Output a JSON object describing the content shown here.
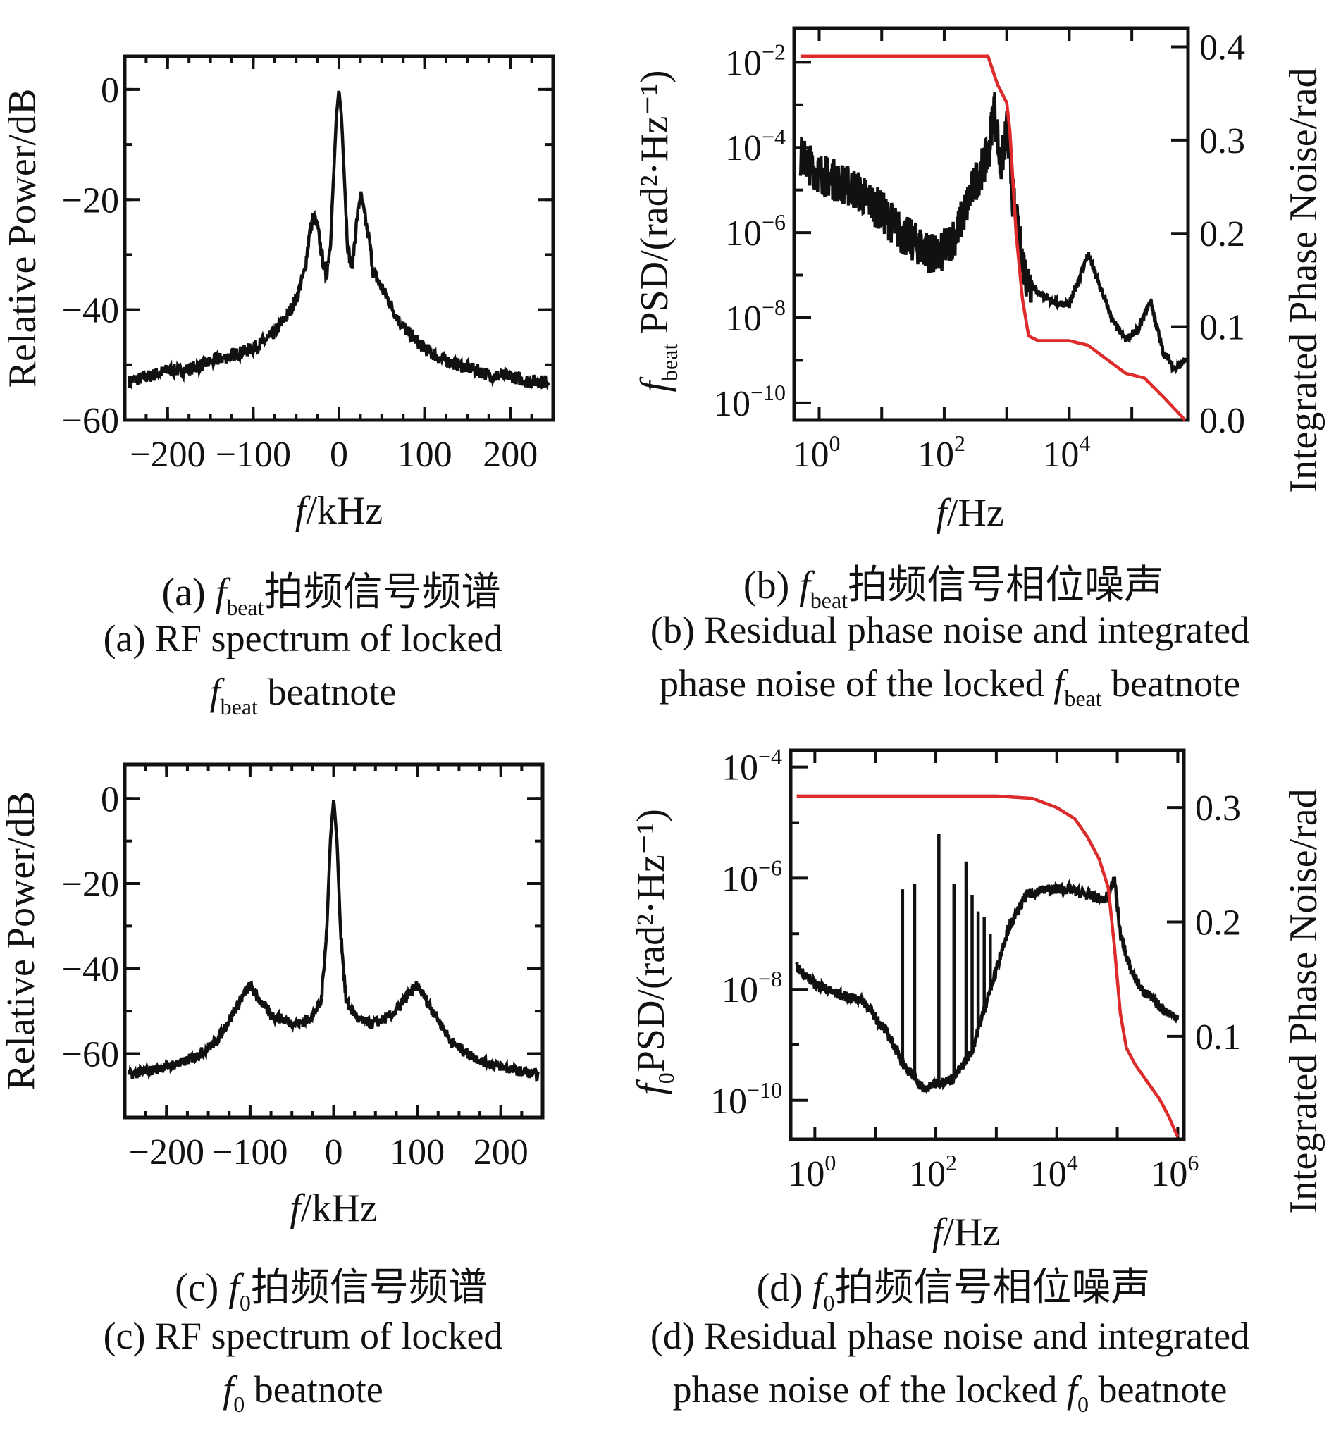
{
  "chart_data": [
    {
      "id": "a",
      "type": "line",
      "ylabel": "Relative Power/dB",
      "xlabel_italic": "f",
      "xlabel_rest": "/kHz",
      "xlim": [
        -250,
        250
      ],
      "ylim": [
        -60,
        6
      ],
      "xticks": [
        -200,
        -100,
        0,
        100,
        200
      ],
      "yticks": [
        0,
        -20,
        -40,
        -60
      ],
      "xtick_labels": [
        "−200",
        "−100",
        "0",
        "100",
        "200"
      ],
      "ytick_labels": [
        "0",
        "−20",
        "−40",
        "−60"
      ],
      "series": [
        {
          "color": "#111111",
          "x": [
            -245,
            -220,
            -200,
            -180,
            -160,
            -140,
            -120,
            -100,
            -80,
            -70,
            -60,
            -50,
            -40,
            -35,
            -30,
            -25,
            -20,
            -15,
            -10,
            -6,
            -3,
            0,
            3,
            6,
            10,
            15,
            20,
            25,
            30,
            35,
            40,
            50,
            60,
            70,
            80,
            100,
            120,
            140,
            160,
            180,
            200,
            220,
            245
          ],
          "y": [
            -53,
            -52,
            -51,
            -51,
            -50,
            -49,
            -48,
            -47,
            -45,
            -43,
            -41,
            -38,
            -33,
            -27,
            -23,
            -25,
            -30,
            -34,
            -28,
            -15,
            -5,
            0,
            -5,
            -15,
            -28,
            -33,
            -25,
            -19,
            -23,
            -27,
            -33,
            -36,
            -39,
            -42,
            -44,
            -47,
            -49,
            -50,
            -51,
            -52,
            -52,
            -53,
            -53
          ]
        }
      ]
    },
    {
      "id": "b",
      "type": "line",
      "xscale": "log",
      "yscale": "log",
      "ylabel_italic": "f",
      "ylabel_sub": "beat",
      "ylabel_rest": " PSD/(rad²·Hz⁻¹)",
      "y2label": "Integrated Phase Noise/rad",
      "xlabel_italic": "f",
      "xlabel_rest": "/Hz",
      "xlim_log10": [
        -0.4,
        5.9
      ],
      "ylim_log10": [
        -10.4,
        -1.2
      ],
      "y2lim": [
        0,
        0.42
      ],
      "xticks_log10": [
        0,
        2,
        4
      ],
      "yticks_log10": [
        -2,
        -4,
        -6,
        -8,
        -10
      ],
      "y2ticks": [
        0.4,
        0.3,
        0.2,
        0.1,
        0.0
      ],
      "y2tick_labels": [
        "0.4",
        "0.3",
        "0.2",
        "0.1",
        "0.0"
      ],
      "series": [
        {
          "name": "",
          "color": "#111111",
          "axis": "left",
          "x_log10": [
            -0.3,
            0,
            0.3,
            0.6,
            1,
            1.3,
            1.6,
            1.9,
            2.2,
            2.5,
            2.7,
            2.8,
            2.9,
            3.0,
            3.1,
            3.2,
            3.3,
            3.5,
            3.7,
            4.0,
            4.3,
            4.5,
            4.7,
            4.9,
            5.1,
            5.3,
            5.5,
            5.7,
            5.85
          ],
          "y_log10": [
            -4.2,
            -4.6,
            -4.8,
            -5.0,
            -5.5,
            -6.0,
            -6.3,
            -6.6,
            -6.0,
            -4.8,
            -4.2,
            -3.0,
            -4.5,
            -3.6,
            -5.2,
            -6.2,
            -7.0,
            -7.4,
            -7.6,
            -7.7,
            -6.5,
            -7.3,
            -8.1,
            -8.5,
            -8.3,
            -7.6,
            -8.8,
            -9.2,
            -9.0
          ]
        },
        {
          "name": "",
          "color": "#dd2a2a",
          "axis": "right",
          "x_log10": [
            -0.3,
            1,
            2,
            2.7,
            2.85,
            3.0,
            3.05,
            3.15,
            3.25,
            3.35,
            3.5,
            4.0,
            4.3,
            4.6,
            4.9,
            5.2,
            5.5,
            5.85
          ],
          "y": [
            0.39,
            0.39,
            0.39,
            0.39,
            0.36,
            0.34,
            0.31,
            0.2,
            0.13,
            0.09,
            0.085,
            0.085,
            0.08,
            0.065,
            0.05,
            0.045,
            0.025,
            0.0
          ]
        }
      ]
    },
    {
      "id": "c",
      "type": "line",
      "ylabel": "Relative Power/dB",
      "xlabel_italic": "f",
      "xlabel_rest": "/kHz",
      "xlim": [
        -250,
        250
      ],
      "ylim": [
        -75,
        8
      ],
      "xticks": [
        -200,
        -100,
        0,
        100,
        200
      ],
      "yticks": [
        0,
        -20,
        -40,
        -60
      ],
      "xtick_labels": [
        "−200",
        "−100",
        "0",
        "100",
        "200"
      ],
      "ytick_labels": [
        "0",
        "−20",
        "−40",
        "−60"
      ],
      "series": [
        {
          "color": "#111111",
          "x": [
            -245,
            -220,
            -200,
            -180,
            -160,
            -140,
            -125,
            -110,
            -100,
            -90,
            -75,
            -60,
            -45,
            -30,
            -15,
            -8,
            -4,
            0,
            4,
            8,
            15,
            30,
            45,
            60,
            75,
            90,
            100,
            110,
            125,
            140,
            160,
            180,
            200,
            220,
            245
          ],
          "y": [
            -65,
            -64,
            -63,
            -62,
            -60,
            -57,
            -52,
            -47,
            -44,
            -47,
            -51,
            -52,
            -53,
            -52,
            -48,
            -30,
            -10,
            0,
            -10,
            -30,
            -48,
            -52,
            -53,
            -52,
            -50,
            -46,
            -44,
            -47,
            -52,
            -57,
            -60,
            -62,
            -63,
            -64,
            -65
          ]
        }
      ]
    },
    {
      "id": "d",
      "type": "line",
      "xscale": "log",
      "yscale": "log",
      "ylabel_italic": "f",
      "ylabel_sub": "0",
      "ylabel_rest": "PSD/(rad²·Hz⁻¹)",
      "y2label": "Integrated Phase Noise/rad",
      "xlabel_italic": "f",
      "xlabel_rest": "/Hz",
      "xlim_log10": [
        -0.4,
        6.1
      ],
      "ylim_log10": [
        -10.7,
        -3.7
      ],
      "y2lim": [
        0.01,
        0.35
      ],
      "xticks_log10": [
        0,
        2,
        4,
        6
      ],
      "yticks_log10": [
        -4,
        -6,
        -8,
        -10
      ],
      "y2ticks": [
        0.3,
        0.2,
        0.1
      ],
      "y2tick_labels": [
        "0.3",
        "0.2",
        "0.1"
      ],
      "series": [
        {
          "name": "",
          "color": "#111111",
          "axis": "left",
          "x_log10": [
            -0.3,
            0,
            0.4,
            0.8,
            1.2,
            1.5,
            1.8,
            2.0,
            2.3,
            2.6,
            2.9,
            3.2,
            3.5,
            3.8,
            4.2,
            4.5,
            4.8,
            4.95,
            5.05,
            5.2,
            5.4,
            5.6,
            5.8,
            6.0
          ],
          "y_log10": [
            -7.6,
            -7.9,
            -8.1,
            -8.2,
            -8.8,
            -9.4,
            -9.8,
            -9.7,
            -9.6,
            -9.1,
            -8.0,
            -6.9,
            -6.3,
            -6.2,
            -6.2,
            -6.3,
            -6.4,
            -6.0,
            -7.0,
            -7.6,
            -8.0,
            -8.2,
            -8.4,
            -8.5
          ],
          "spikes": [
            {
              "x_log10": 1.45,
              "y_log10": -6.2
            },
            {
              "x_log10": 1.65,
              "y_log10": -6.1
            },
            {
              "x_log10": 2.05,
              "y_log10": -5.2
            },
            {
              "x_log10": 2.3,
              "y_log10": -6.1
            },
            {
              "x_log10": 2.5,
              "y_log10": -5.7
            },
            {
              "x_log10": 2.6,
              "y_log10": -6.3
            },
            {
              "x_log10": 2.7,
              "y_log10": -6.6
            },
            {
              "x_log10": 2.8,
              "y_log10": -6.7
            },
            {
              "x_log10": 2.9,
              "y_log10": -7.0
            }
          ]
        },
        {
          "name": "",
          "color": "#dd2a2a",
          "axis": "right",
          "x_log10": [
            -0.3,
            1,
            2,
            3,
            3.6,
            4.0,
            4.3,
            4.5,
            4.7,
            4.85,
            4.95,
            5.05,
            5.15,
            5.3,
            5.5,
            5.7,
            5.85,
            6.0
          ],
          "y": [
            0.31,
            0.31,
            0.31,
            0.31,
            0.308,
            0.3,
            0.29,
            0.275,
            0.255,
            0.23,
            0.18,
            0.12,
            0.09,
            0.075,
            0.06,
            0.045,
            0.03,
            0.012
          ]
        }
      ]
    }
  ],
  "captions": {
    "a_cn": "拍频信号频谱",
    "a_en1": "(a) RF spectrum of locked",
    "a_en2": " beatnote",
    "b_cn": "拍频信号相位噪声",
    "b_en1": "(b) Residual phase noise and integrated",
    "b_en2": "phase noise of the locked ",
    "b_en3": " beatnote",
    "c_cn": "拍频信号频谱",
    "c_en1": "(c) RF spectrum of locked",
    "c_en2": " beatnote",
    "d_cn": "拍频信号相位噪声",
    "d_en1": "(d) Residual phase noise and integrated",
    "d_en2": "phase noise of the locked ",
    "d_en3": " beatnote",
    "tag_a": "(a) ",
    "tag_b": "(b) ",
    "tag_c": "(c) ",
    "tag_d": "(d) ",
    "f": "f",
    "beat": "beat",
    "zero": "0"
  }
}
